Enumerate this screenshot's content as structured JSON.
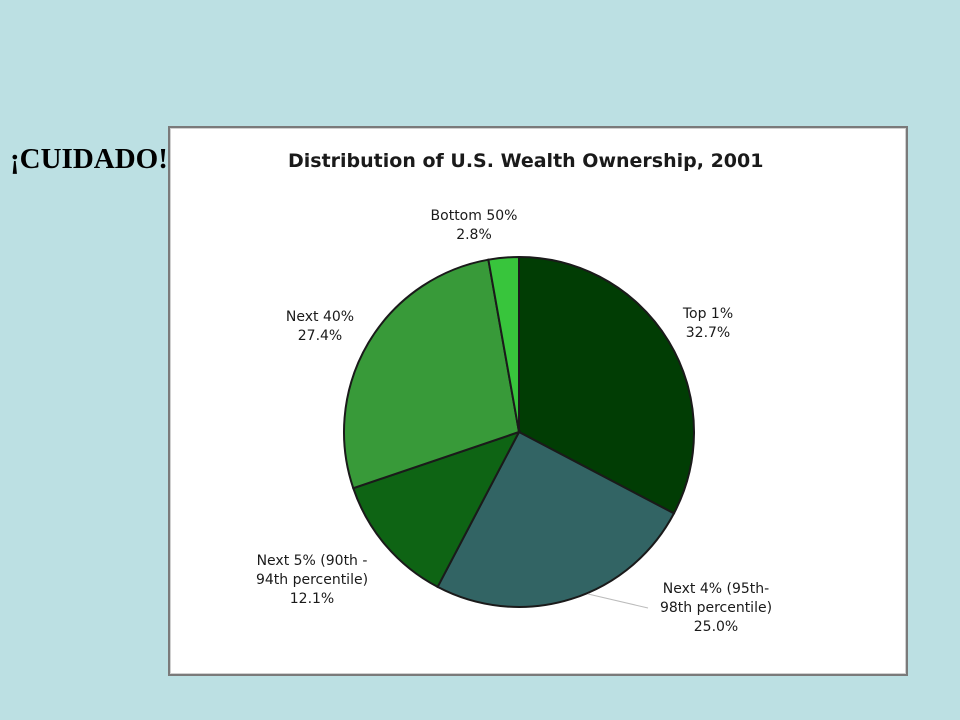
{
  "slide": {
    "callout": "¡CUIDADO!",
    "arrow_color": "#f0457a",
    "background": "#bce0e3"
  },
  "chart_data": {
    "type": "pie",
    "title": "Distribution of U.S. Wealth Ownership, 2001",
    "start_angle_deg": 0,
    "direction": "clockwise",
    "slices": [
      {
        "label_lines": [
          "Top 1%",
          "32.7%"
        ],
        "value": 32.7,
        "color": "#013d04"
      },
      {
        "label_lines": [
          "Next 4% (95th-",
          "98th percentile)",
          "25.0%"
        ],
        "value": 25.0,
        "color": "#326464"
      },
      {
        "label_lines": [
          "Next 5% (90th -",
          "94th percentile)",
          "12.1%"
        ],
        "value": 12.1,
        "color": "#0e6414"
      },
      {
        "label_lines": [
          "Next 40%",
          "27.4%"
        ],
        "value": 27.4,
        "color": "#389a39"
      },
      {
        "label_lines": [
          "Bottom 50%",
          "2.8%"
        ],
        "value": 2.8,
        "color": "#38c53c"
      }
    ]
  }
}
